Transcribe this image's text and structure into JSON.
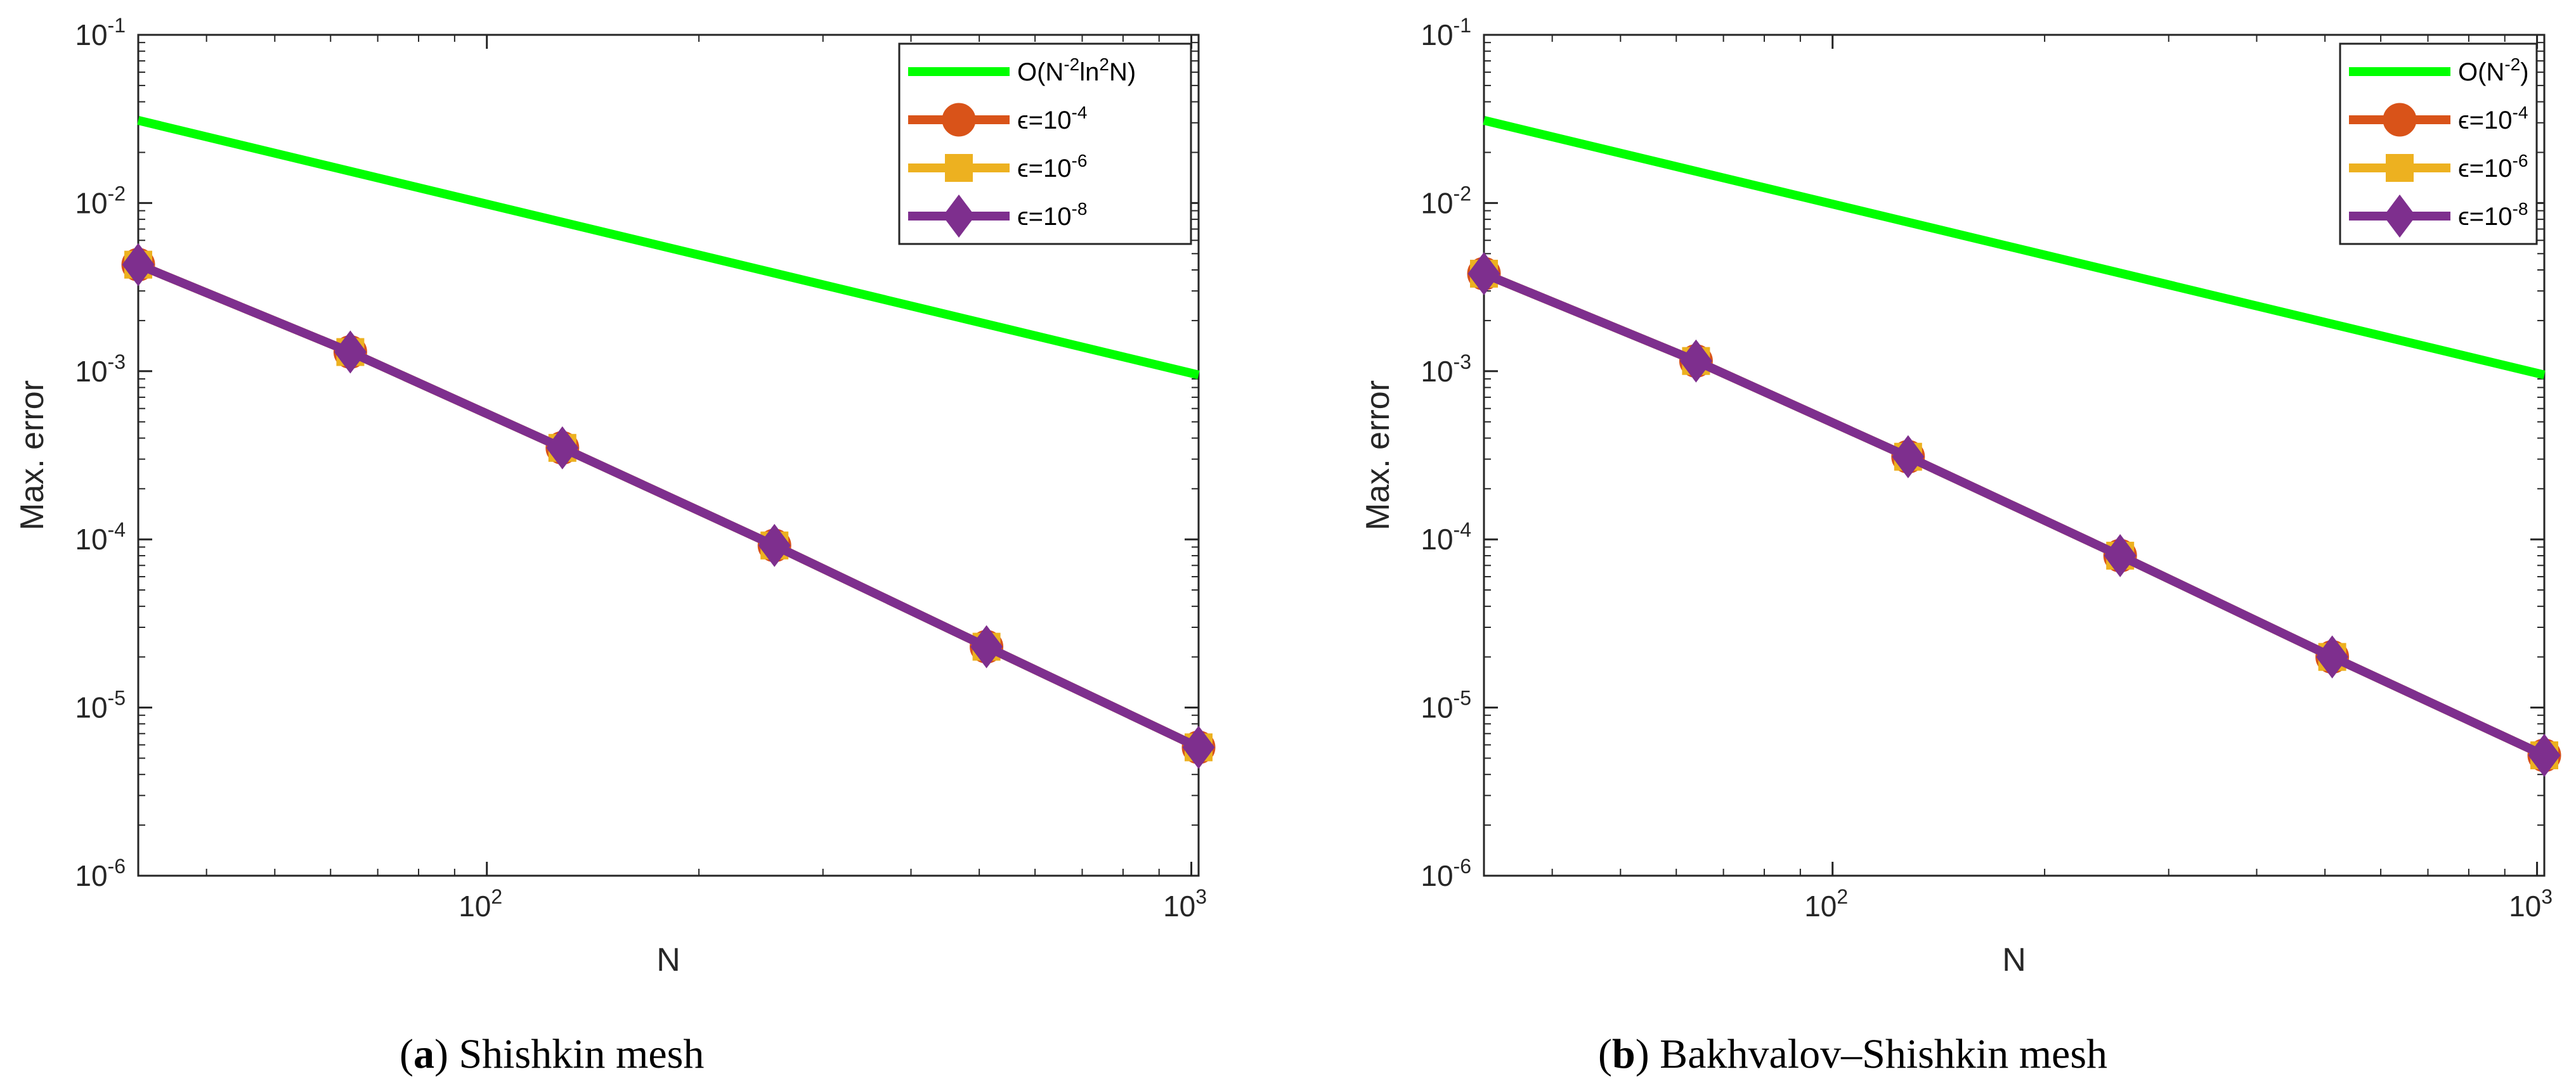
{
  "chart_data": [
    {
      "type": "line",
      "xscale": "log",
      "yscale": "log",
      "xlim": [
        32,
        1024
      ],
      "ylim": [
        1e-06,
        0.1
      ],
      "xlabel": "N",
      "ylabel": "Max. error",
      "xtick_labels": [
        {
          "base": "10",
          "exp": "2"
        },
        {
          "base": "10",
          "exp": "3"
        }
      ],
      "ytick_labels": [
        {
          "base": "10",
          "exp": "-6"
        },
        {
          "base": "10",
          "exp": "-5"
        },
        {
          "base": "10",
          "exp": "-4"
        },
        {
          "base": "10",
          "exp": "-3"
        },
        {
          "base": "10",
          "exp": "-2"
        },
        {
          "base": "10",
          "exp": "-1"
        }
      ],
      "caption": {
        "letter": "a",
        "text": "Shishkin mesh"
      },
      "reference": {
        "name_parts": [
          "O(N",
          "-2",
          "ln",
          "2",
          "N)"
        ],
        "color": "#00ff00",
        "x": [
          32,
          1024
        ],
        "y": [
          0.031,
          0.00095
        ]
      },
      "x": [
        32,
        64,
        128,
        256,
        512,
        1024
      ],
      "series": [
        {
          "name_base": "ϵ=10",
          "name_exp": "-4",
          "marker": "circle",
          "color": "#d95319",
          "values": [
            0.0043,
            0.0013,
            0.00035,
            9.2e-05,
            2.3e-05,
            5.8e-06
          ]
        },
        {
          "name_base": "ϵ=10",
          "name_exp": "-6",
          "marker": "square",
          "color": "#edb120",
          "values": [
            0.0043,
            0.0013,
            0.00035,
            9.2e-05,
            2.3e-05,
            5.8e-06
          ]
        },
        {
          "name_base": "ϵ=10",
          "name_exp": "-8",
          "marker": "diamond",
          "color": "#7e2f8e",
          "values": [
            0.0043,
            0.0013,
            0.00035,
            9.2e-05,
            2.3e-05,
            5.8e-06
          ]
        }
      ],
      "legend_position": "top-right"
    },
    {
      "type": "line",
      "xscale": "log",
      "yscale": "log",
      "xlim": [
        32,
        1024
      ],
      "ylim": [
        1e-06,
        0.1
      ],
      "xlabel": "N",
      "ylabel": "Max. error",
      "xtick_labels": [
        {
          "base": "10",
          "exp": "2"
        },
        {
          "base": "10",
          "exp": "3"
        }
      ],
      "ytick_labels": [
        {
          "base": "10",
          "exp": "-6"
        },
        {
          "base": "10",
          "exp": "-5"
        },
        {
          "base": "10",
          "exp": "-4"
        },
        {
          "base": "10",
          "exp": "-3"
        },
        {
          "base": "10",
          "exp": "-2"
        },
        {
          "base": "10",
          "exp": "-1"
        }
      ],
      "caption": {
        "letter": "b",
        "text": "Bakhvalov–Shishkin mesh"
      },
      "reference": {
        "name_parts": [
          "O(N",
          "-2",
          ")"
        ],
        "color": "#00ff00",
        "x": [
          32,
          1024
        ],
        "y": [
          0.031,
          0.00095
        ]
      },
      "x": [
        32,
        64,
        128,
        256,
        512,
        1024
      ],
      "series": [
        {
          "name_base": "ϵ=10",
          "name_exp": "-4",
          "marker": "circle",
          "color": "#d95319",
          "values": [
            0.0038,
            0.00115,
            0.00031,
            8e-05,
            2e-05,
            5.2e-06
          ]
        },
        {
          "name_base": "ϵ=10",
          "name_exp": "-6",
          "marker": "square",
          "color": "#edb120",
          "values": [
            0.0038,
            0.00115,
            0.00031,
            8e-05,
            2e-05,
            5.2e-06
          ]
        },
        {
          "name_base": "ϵ=10",
          "name_exp": "-8",
          "marker": "diamond",
          "color": "#7e2f8e",
          "values": [
            0.0038,
            0.00115,
            0.00031,
            8e-05,
            2e-05,
            5.2e-06
          ]
        }
      ],
      "legend_position": "top-right"
    }
  ]
}
